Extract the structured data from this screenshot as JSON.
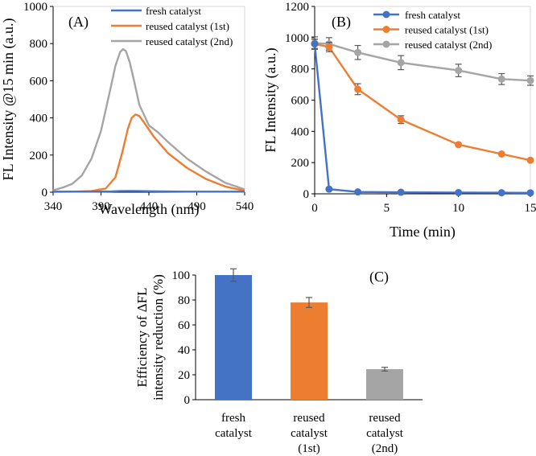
{
  "colors": {
    "blue": "#4472C4",
    "orange": "#ED7D31",
    "gray": "#A5A5A5",
    "axis": "#000000",
    "errbar": "#595959"
  },
  "chart_data": [
    {
      "panel_label": "(A)",
      "type": "line",
      "xlabel": "Wavelength (nm)",
      "ylabel": "FL Intensity @15 min (a.u.)",
      "xlim": [
        340,
        540
      ],
      "ylim": [
        0,
        1000
      ],
      "xticks": [
        "340",
        "390",
        "440",
        "490",
        "540"
      ],
      "yticks": [
        "0",
        "200",
        "400",
        "600",
        "800",
        "1000"
      ],
      "legend": "top-right",
      "series": [
        {
          "name": "fresh catalyst",
          "color": "blue",
          "x": [
            340,
            360,
            380,
            400,
            410,
            420,
            430,
            440,
            460,
            480,
            500,
            520,
            540
          ],
          "y": [
            3,
            3,
            3,
            4,
            6,
            7,
            6,
            5,
            4,
            3,
            3,
            3,
            3
          ]
        },
        {
          "name": "reused catalyst (1st)",
          "color": "orange",
          "x": [
            340,
            360,
            380,
            395,
            405,
            412,
            418,
            422,
            426,
            430,
            435,
            445,
            460,
            480,
            500,
            520,
            540
          ],
          "y": [
            2,
            3,
            6,
            20,
            80,
            210,
            340,
            400,
            418,
            410,
            375,
            300,
            210,
            130,
            70,
            30,
            8
          ]
        },
        {
          "name": "reused catalyst (2nd)",
          "color": "gray",
          "x": [
            340,
            350,
            360,
            370,
            380,
            390,
            400,
            405,
            410,
            413,
            416,
            420,
            425,
            430,
            440,
            450,
            460,
            480,
            500,
            520,
            540
          ],
          "y": [
            10,
            25,
            45,
            90,
            180,
            330,
            560,
            680,
            755,
            770,
            760,
            700,
            590,
            470,
            360,
            320,
            270,
            180,
            110,
            50,
            15
          ]
        }
      ]
    },
    {
      "panel_label": "(B)",
      "type": "line",
      "xlabel": "Time (min)",
      "ylabel": "FL Intensity (a.u.)",
      "xlim": [
        0,
        15
      ],
      "ylim": [
        0,
        1200
      ],
      "xticks": [
        "0",
        "5",
        "10",
        "15"
      ],
      "yticks": [
        "0",
        "200",
        "400",
        "600",
        "800",
        "1000",
        "1200"
      ],
      "legend": "top-right",
      "x": [
        0,
        1,
        3,
        6,
        10,
        13,
        15
      ],
      "series": [
        {
          "name": "fresh catalyst",
          "color": "blue",
          "values": [
            960,
            30,
            12,
            10,
            8,
            7,
            6
          ],
          "errors": [
            30,
            0,
            0,
            0,
            0,
            0,
            0
          ]
        },
        {
          "name": "reused catalyst (1st)",
          "color": "orange",
          "values": [
            960,
            940,
            670,
            475,
            315,
            255,
            215
          ],
          "errors": [
            30,
            30,
            35,
            25,
            0,
            0,
            0
          ]
        },
        {
          "name": "reused catalyst (2nd)",
          "color": "gray",
          "values": [
            965,
            960,
            905,
            840,
            790,
            735,
            725
          ],
          "errors": [
            40,
            40,
            45,
            45,
            40,
            35,
            30
          ]
        }
      ]
    },
    {
      "panel_label": "(C)",
      "type": "bar",
      "ylabel_line1": "Efficiency of ΔFL",
      "ylabel_line2": "intensity reduction (%)",
      "ylim": [
        0,
        100
      ],
      "yticks": [
        "0",
        "20",
        "40",
        "60",
        "80",
        "100"
      ],
      "categories": [
        [
          "fresh",
          "catalyst"
        ],
        [
          "reused",
          "catalyst",
          "(1st)"
        ],
        [
          "reused",
          "catalyst",
          "(2nd)"
        ]
      ],
      "values": [
        100,
        78,
        24.5
      ],
      "errors": [
        5,
        4,
        1.5
      ],
      "bar_colors": [
        "blue",
        "orange",
        "gray"
      ]
    }
  ]
}
